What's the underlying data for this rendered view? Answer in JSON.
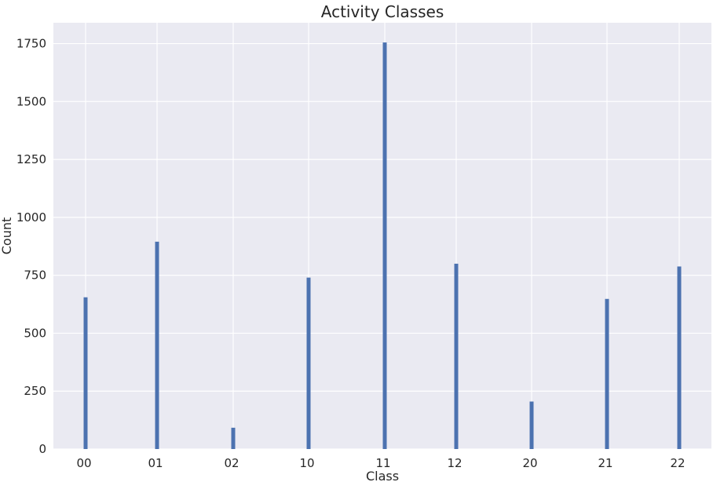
{
  "chart_data": {
    "type": "bar",
    "title": "Activity Classes",
    "xlabel": "Class",
    "ylabel": "Count",
    "categories": [
      "00",
      "01",
      "02",
      "10",
      "11",
      "12",
      "20",
      "21",
      "22"
    ],
    "values": [
      655,
      895,
      92,
      740,
      1755,
      800,
      205,
      648,
      788
    ],
    "ylim": [
      0,
      1840
    ],
    "yticks": [
      0,
      250,
      500,
      750,
      1000,
      1250,
      1500,
      1750
    ],
    "grid": true,
    "bar_color": "#4c72b0",
    "background_color": "#eaeaf2",
    "grid_color": "#ffffff"
  }
}
